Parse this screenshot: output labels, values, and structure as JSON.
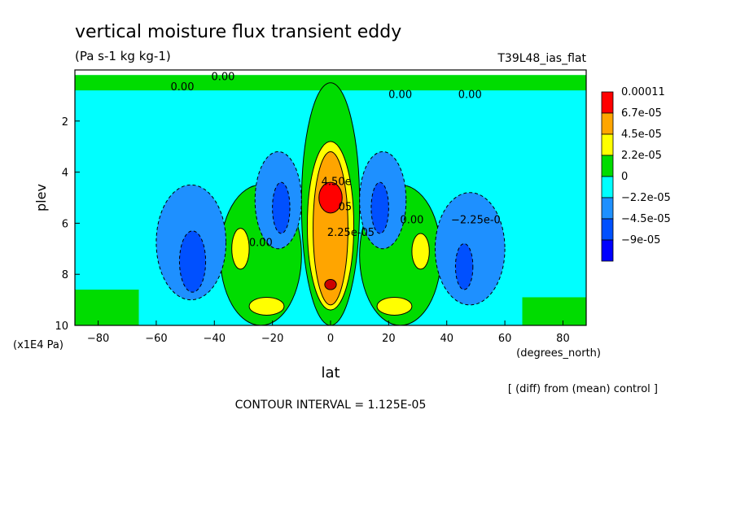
{
  "chart_data": {
    "type": "heatmap",
    "title": "vertical moisture flux transient eddy",
    "units": "(Pa s-1 kg kg-1)",
    "run_label": "T39L48_ias_flat",
    "xlabel": "lat",
    "x_units": "(degrees_north)",
    "ylabel": "plev",
    "y_units": "(x1E4 Pa)",
    "xlim": [
      -88,
      88
    ],
    "ylim": [
      10,
      0
    ],
    "x_ticks": [
      -80,
      -60,
      -40,
      -20,
      0,
      20,
      40,
      60,
      80
    ],
    "y_ticks": [
      2,
      4,
      6,
      8,
      10
    ],
    "contour_interval_text": "CONTOUR INTERVAL = 1.125E-05",
    "subtitle": "[ (diff) from (mean) control ]",
    "legend": {
      "placement": "right",
      "labels": [
        "0.00011",
        "6.7e-05",
        "4.5e-05",
        "2.2e-05",
        "0",
        "−2.2e-05",
        "−4.5e-05",
        "−9e-05"
      ],
      "colors": [
        "#ff0000",
        "#ffa500",
        "#ffff00",
        "#00dc00",
        "#00ffff",
        "#1e90ff",
        "#0050ff",
        "#0000ff"
      ],
      "colors_order": "red, orange, yellow, green, cyan, dodgerblue, blue, darkblue"
    },
    "contour_labels": [
      {
        "text": "0.00",
        "lat": -51,
        "plev": 0.8
      },
      {
        "text": "0.00",
        "lat": -37,
        "plev": 0.4
      },
      {
        "text": "0.00",
        "lat": 24,
        "plev": 1.1
      },
      {
        "text": "0.00",
        "lat": 48,
        "plev": 1.1
      },
      {
        "text": "0.00",
        "lat": 28,
        "plev": 6.0
      },
      {
        "text": "0.00",
        "lat": -24,
        "plev": 6.9
      },
      {
        "text": "−2.25e-0",
        "lat": 50,
        "plev": 6.0
      },
      {
        "text": "4.50e",
        "lat": 2,
        "plev": 4.5
      },
      {
        "text": "2.25e-05",
        "lat": 7,
        "plev": 6.5
      },
      {
        "text": "05",
        "lat": 5,
        "plev": 5.5
      }
    ],
    "fields": {
      "cyan_background": [
        {
          "lat": [
            -88,
            88
          ],
          "plev": [
            0.2,
            10
          ]
        }
      ],
      "green_regions": [
        {
          "name": "polar-top-band",
          "lat": [
            -88,
            88
          ],
          "plev": [
            0.2,
            0.8
          ]
        },
        {
          "name": "equatorial-column",
          "lat": [
            -10,
            10
          ],
          "plev": [
            0.5,
            10
          ]
        },
        {
          "name": "sh-subtropics",
          "lat": [
            -38,
            -10
          ],
          "plev": [
            4.5,
            10
          ]
        },
        {
          "name": "nh-subtropics",
          "lat": [
            10,
            38
          ],
          "plev": [
            4.5,
            10
          ]
        },
        {
          "name": "sh-high-surface",
          "lat": [
            -88,
            -66
          ],
          "plev": [
            8.6,
            10
          ]
        },
        {
          "name": "nh-high-surface",
          "lat": [
            66,
            88
          ],
          "plev": [
            8.9,
            10
          ]
        }
      ],
      "blue_regions": [
        {
          "name": "sh-jet",
          "lat": [
            -60,
            -36
          ],
          "plev": [
            4.5,
            9.0
          ],
          "level": "−4.5e-05"
        },
        {
          "name": "sh-subtrop-upper",
          "lat": [
            -26,
            -10
          ],
          "plev": [
            3.2,
            7.0
          ],
          "level": "−4.5e-05"
        },
        {
          "name": "nh-subtrop-upper",
          "lat": [
            10,
            26
          ],
          "plev": [
            3.2,
            7.0
          ],
          "level": "−4.5e-05"
        },
        {
          "name": "nh-jet",
          "lat": [
            36,
            60
          ],
          "plev": [
            4.8,
            9.2
          ],
          "level": "−2.2e-05"
        }
      ],
      "darkblue_regions": [
        {
          "lat": [
            -52,
            -43
          ],
          "plev": [
            6.3,
            8.7
          ]
        },
        {
          "lat": [
            -20,
            -14
          ],
          "plev": [
            4.4,
            6.4
          ]
        },
        {
          "lat": [
            14,
            20
          ],
          "plev": [
            4.4,
            6.4
          ]
        },
        {
          "lat": [
            43,
            49
          ],
          "plev": [
            6.8,
            8.6
          ]
        }
      ],
      "yellow_regions": [
        {
          "lat": [
            -34,
            -28
          ],
          "plev": [
            6.2,
            7.8
          ]
        },
        {
          "lat": [
            28,
            34
          ],
          "plev": [
            6.4,
            7.8
          ]
        },
        {
          "lat": [
            -28,
            -16
          ],
          "plev": [
            8.9,
            9.6
          ]
        },
        {
          "lat": [
            16,
            28
          ],
          "plev": [
            8.9,
            9.6
          ]
        },
        {
          "lat": [
            -8,
            8
          ],
          "plev": [
            2.8,
            9.4
          ]
        }
      ],
      "orange_regions": [
        {
          "lat": [
            -6,
            6
          ],
          "plev": [
            3.2,
            9.2
          ]
        }
      ],
      "red_regions": [
        {
          "lat": [
            -4,
            4
          ],
          "plev": [
            4.4,
            5.6
          ]
        },
        {
          "lat": [
            -2,
            2
          ],
          "plev": [
            8.2,
            8.6
          ],
          "level": "darkred"
        }
      ]
    }
  }
}
